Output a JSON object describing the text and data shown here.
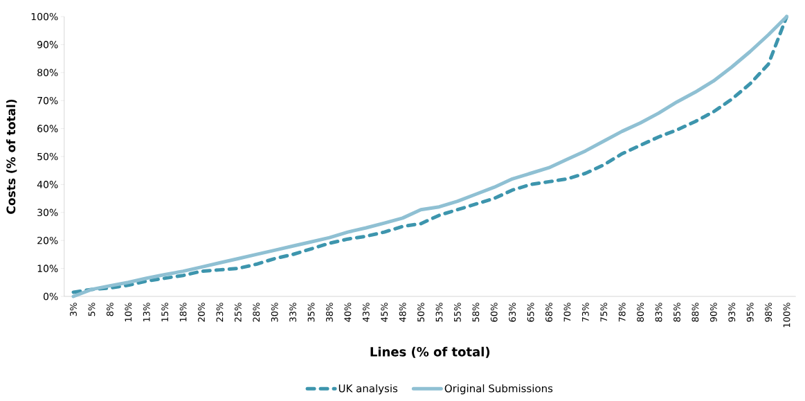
{
  "chart_data": {
    "type": "line",
    "xlabel": "Lines (% of total)",
    "ylabel": "Costs (% of total)",
    "categories": [
      "3%",
      "5%",
      "8%",
      "10%",
      "13%",
      "15%",
      "18%",
      "20%",
      "23%",
      "25%",
      "28%",
      "30%",
      "33%",
      "35%",
      "38%",
      "40%",
      "43%",
      "45%",
      "48%",
      "50%",
      "53%",
      "55%",
      "58%",
      "60%",
      "63%",
      "65%",
      "68%",
      "70%",
      "73%",
      "75%",
      "78%",
      "80%",
      "83%",
      "85%",
      "88%",
      "90%",
      "93%",
      "95%",
      "98%",
      "100%"
    ],
    "series": [
      {
        "name": "UK analysis",
        "color": "#3d95ad",
        "line_style": "dashed",
        "values": [
          1.5,
          2.5,
          3,
          4,
          5.5,
          6.5,
          7.5,
          9,
          9.5,
          10,
          11.5,
          13.5,
          15,
          17,
          19,
          20.5,
          21.5,
          23,
          25,
          26,
          29,
          31,
          33,
          35,
          38,
          40,
          41,
          42,
          44,
          47,
          51,
          54,
          57,
          59.5,
          62.5,
          66,
          70.5,
          76,
          83,
          100
        ]
      },
      {
        "name": "Original Submissions",
        "color": "#8fc0d3",
        "line_style": "solid",
        "values": [
          0,
          2.5,
          3.8,
          5,
          6.5,
          7.8,
          9,
          10.5,
          12,
          13.5,
          15,
          16.5,
          18,
          19.5,
          21,
          23,
          24.5,
          26.2,
          28,
          31,
          32,
          34,
          36.5,
          39,
          42,
          44,
          46,
          49,
          52,
          55.5,
          59,
          62,
          65.5,
          69.5,
          73,
          77,
          82,
          87.5,
          93.5,
          100
        ]
      }
    ],
    "ylim": [
      0,
      100
    ],
    "yticks": [
      {
        "value": 0,
        "label": "0%"
      },
      {
        "value": 10,
        "label": "10%"
      },
      {
        "value": 20,
        "label": "20%"
      },
      {
        "value": 30,
        "label": "30%"
      },
      {
        "value": 40,
        "label": "40%"
      },
      {
        "value": 50,
        "label": "50%"
      },
      {
        "value": 60,
        "label": "60%"
      },
      {
        "value": 70,
        "label": "70%"
      },
      {
        "value": 80,
        "label": "80%"
      },
      {
        "value": 90,
        "label": "90%"
      },
      {
        "value": 100,
        "label": "100%"
      }
    ],
    "legend": "bottom"
  }
}
